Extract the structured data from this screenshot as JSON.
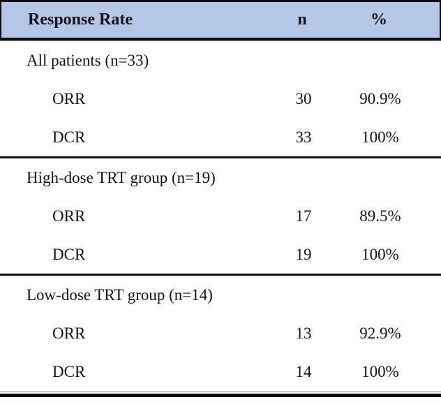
{
  "table": {
    "title": "Response Rate",
    "header": {
      "label": "Response Rate",
      "n": "n",
      "pct": "%"
    },
    "sections": [
      {
        "title": "All patients (n=33)",
        "rows": [
          {
            "label": "ORR",
            "n": "30",
            "pct": "90.9%"
          },
          {
            "label": "DCR",
            "n": "33",
            "pct": "100%"
          }
        ]
      },
      {
        "title": "High-dose TRT group (n=19)",
        "rows": [
          {
            "label": "ORR",
            "n": "17",
            "pct": "89.5%"
          },
          {
            "label": "DCR",
            "n": "19",
            "pct": "100%"
          }
        ]
      },
      {
        "title": "Low-dose TRT group (n=14)",
        "rows": [
          {
            "label": "ORR",
            "n": "13",
            "pct": "92.9%"
          },
          {
            "label": "DCR",
            "n": "14",
            "pct": "100%"
          }
        ]
      }
    ]
  },
  "colors": {
    "header_bg": "#b4c7e7",
    "rule": "#111111",
    "text": "#141414"
  }
}
